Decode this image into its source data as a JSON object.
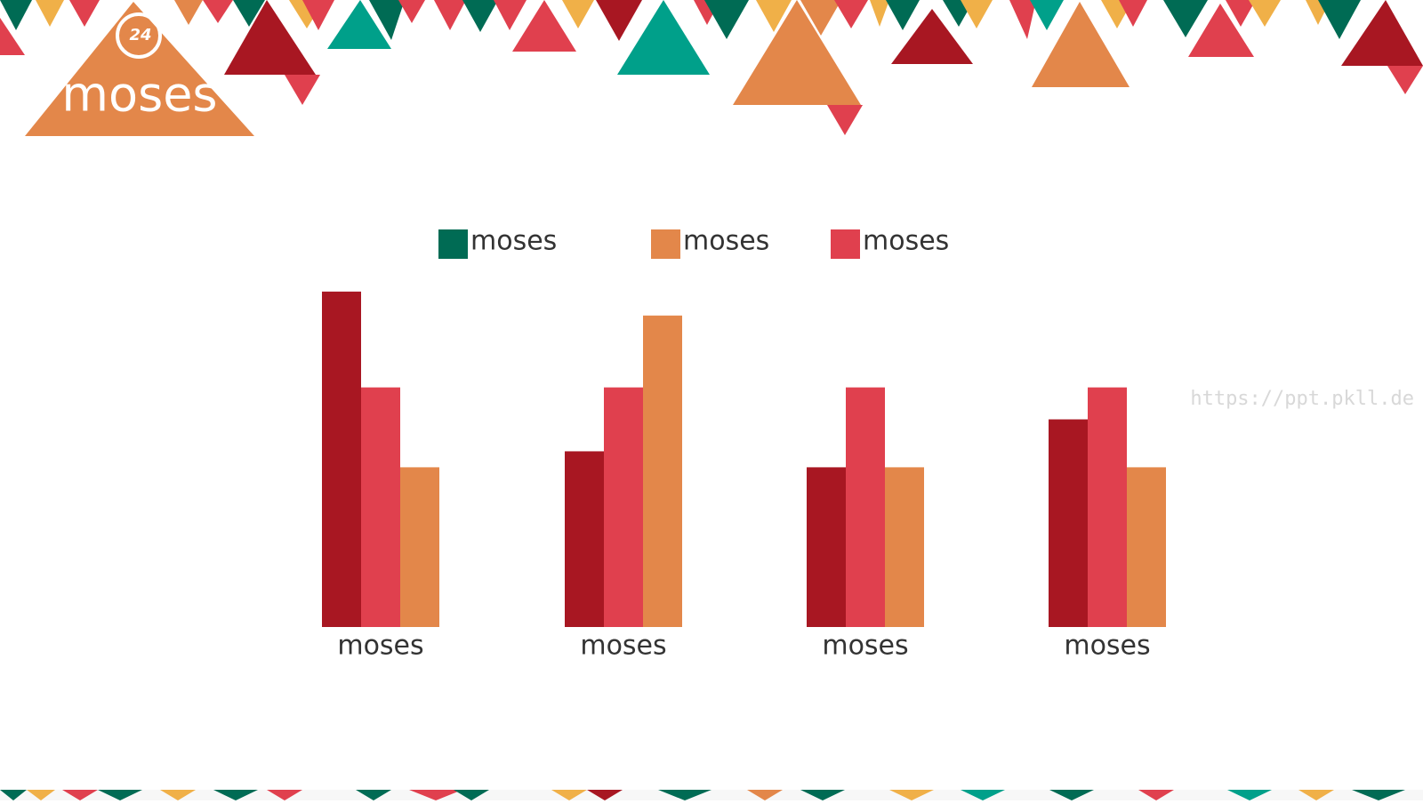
{
  "logo": {
    "badge": "24",
    "title": "moses"
  },
  "watermark": "https://ppt.pkll.de",
  "chart_data": {
    "type": "bar",
    "categories": [
      "moses",
      "moses",
      "moses",
      "moses"
    ],
    "series": [
      {
        "name": "moses",
        "color": "#a81722",
        "legend_color": "#006b54",
        "values": [
          4.2,
          2.2,
          2,
          2.6
        ]
      },
      {
        "name": "moses",
        "color": "#e0404e",
        "legend_color": "#e3874a",
        "values": [
          3,
          3,
          3,
          3
        ]
      },
      {
        "name": "moses",
        "color": "#e3874a",
        "legend_color": "#e0404e",
        "values": [
          2,
          3.9,
          2,
          2
        ]
      }
    ],
    "ylim": [
      0,
      5
    ]
  }
}
